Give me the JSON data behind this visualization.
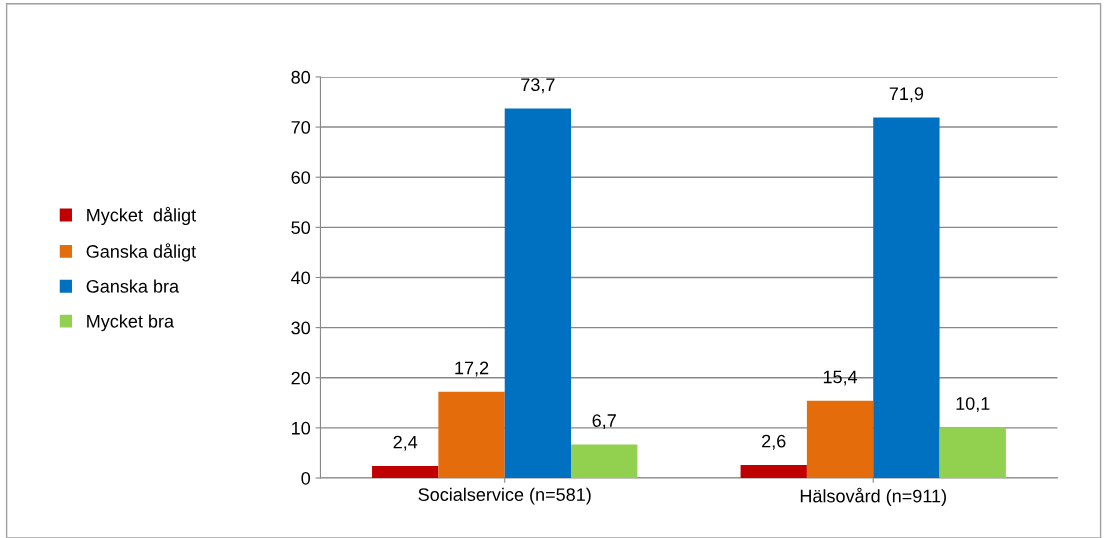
{
  "chart_data": {
    "type": "bar",
    "categories": [
      "Socialservice (n=581)",
      "Hälsovård (n=911)"
    ],
    "series": [
      {
        "name": "Mycket  dåligt",
        "color": "#c00000",
        "values": [
          2.4,
          2.6
        ],
        "value_labels": [
          "2,4",
          "2,6"
        ]
      },
      {
        "name": "Ganska dåligt",
        "color": "#e46c0a",
        "values": [
          17.2,
          15.4
        ],
        "value_labels": [
          "17,2",
          "15,4"
        ]
      },
      {
        "name": "Ganska bra",
        "color": "#0070c0",
        "values": [
          73.7,
          71.9
        ],
        "value_labels": [
          "73,7",
          "71,9"
        ]
      },
      {
        "name": "Mycket bra",
        "color": "#92d050",
        "values": [
          6.7,
          10.1
        ],
        "value_labels": [
          "6,7",
          "10,1"
        ]
      }
    ],
    "ylim": [
      0,
      80
    ],
    "yticks": [
      0,
      10,
      20,
      30,
      40,
      50,
      60,
      70,
      80
    ],
    "grid": "y",
    "legend": "left"
  }
}
